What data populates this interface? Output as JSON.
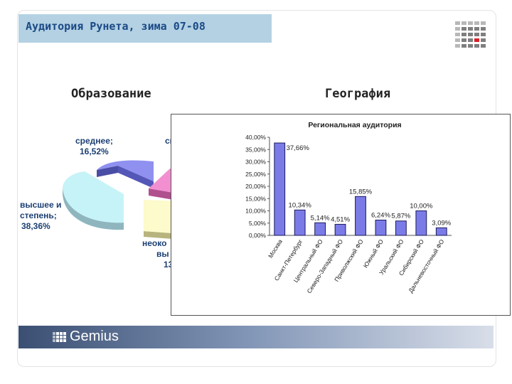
{
  "slide": {
    "title": "Аудитория Рунета, зима 07-08",
    "left_heading": "Образование",
    "right_heading": "География",
    "footer_brand": "Gemius"
  },
  "colors": {
    "title_band": "#b3d1e3",
    "title_text": "#1c4a86",
    "bar_fill": "#7b7be8",
    "footer_dark": "#3a4f72",
    "logo_red": "#d6222a"
  },
  "icons": {
    "logo": "gemius-grid-logo",
    "footer_logo": "gemius-mark-icon"
  },
  "chart_data": [
    {
      "type": "pie",
      "title": "",
      "visible_slices": [
        {
          "label_lines": [
            "среднее;",
            "16,52%"
          ],
          "value": 16.52
        },
        {
          "label_lines": [
            "высшее и",
            "степень;",
            "38,36%"
          ],
          "value": 38.36
        },
        {
          "label_lines": [
            "неоко",
            "вы",
            "13"
          ],
          "value": 13
        },
        {
          "label_lines": [
            "сп"
          ],
          "value": null
        }
      ]
    },
    {
      "type": "bar",
      "title": "Региональная аудитория",
      "categories": [
        "Москва",
        "Санкт-Петербург",
        "Центральный ФО",
        "Северо-Западный ФО",
        "Приволжский ФО",
        "Южный ФО",
        "Уральский ФО",
        "Сибирский ФО",
        "Дальневосточный ФО"
      ],
      "values": [
        37.66,
        10.34,
        5.14,
        4.51,
        15.85,
        6.24,
        5.87,
        10.0,
        3.09
      ],
      "value_labels": [
        "37,66%",
        "10,34%",
        "5,14%",
        "4,51%",
        "15,85%",
        "6,24%",
        "5,87%",
        "10,00%",
        "3,09%"
      ],
      "yticks": [
        "0,00%",
        "5,00%",
        "10,00%",
        "15,00%",
        "20,00%",
        "25,00%",
        "30,00%",
        "35,00%",
        "40,00%"
      ],
      "ylim": [
        0,
        40
      ],
      "xlabel": "",
      "ylabel": ""
    }
  ]
}
